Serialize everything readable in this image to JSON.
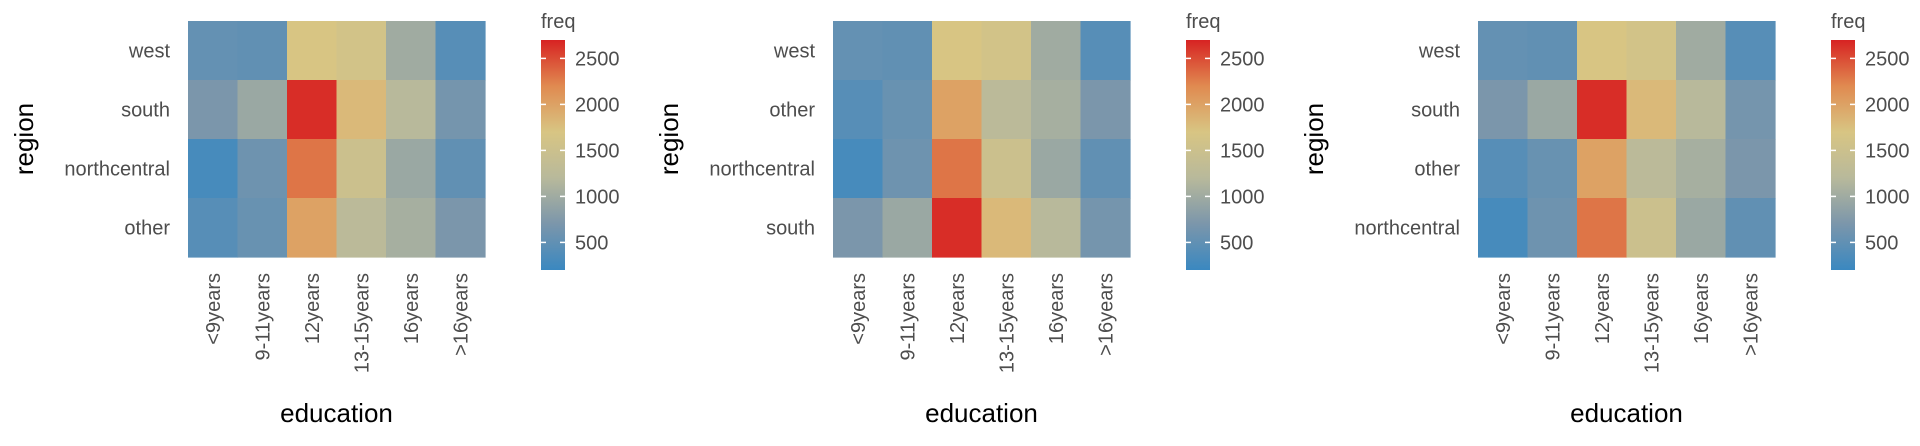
{
  "chart_data": [
    {
      "type": "heatmap",
      "xlabel": "education",
      "ylabel": "region",
      "x_categories": [
        "<9years",
        "9-11years",
        "12years",
        "13-15years",
        "16years",
        ">16years"
      ],
      "y_categories": [
        "west",
        "south",
        "northcentral",
        "other"
      ],
      "values": [
        [
          520,
          500,
          1700,
          1600,
          1000,
          420
        ],
        [
          700,
          950,
          2650,
          1800,
          1200,
          650
        ],
        [
          300,
          600,
          2300,
          1500,
          950,
          500
        ],
        [
          420,
          550,
          2000,
          1250,
          1050,
          700
        ]
      ],
      "legend": {
        "title": "freq",
        "ticks": [
          500,
          1000,
          1500,
          2000,
          2500
        ],
        "range": [
          200,
          2700
        ]
      }
    },
    {
      "type": "heatmap",
      "xlabel": "education",
      "ylabel": "region",
      "x_categories": [
        "<9years",
        "9-11years",
        "12years",
        "13-15years",
        "16years",
        ">16years"
      ],
      "y_categories": [
        "west",
        "other",
        "northcentral",
        "south"
      ],
      "values": [
        [
          520,
          500,
          1700,
          1600,
          1000,
          420
        ],
        [
          420,
          550,
          2000,
          1250,
          1050,
          700
        ],
        [
          300,
          600,
          2300,
          1500,
          950,
          500
        ],
        [
          700,
          950,
          2650,
          1800,
          1200,
          650
        ]
      ],
      "legend": {
        "title": "freq",
        "ticks": [
          500,
          1000,
          1500,
          2000,
          2500
        ],
        "range": [
          200,
          2700
        ]
      }
    },
    {
      "type": "heatmap",
      "xlabel": "education",
      "ylabel": "region",
      "x_categories": [
        "<9years",
        "9-11years",
        "12years",
        "13-15years",
        "16years",
        ">16years"
      ],
      "y_categories": [
        "west",
        "south",
        "other",
        "northcentral"
      ],
      "values": [
        [
          520,
          500,
          1700,
          1600,
          1000,
          420
        ],
        [
          700,
          950,
          2650,
          1800,
          1200,
          650
        ],
        [
          420,
          550,
          2000,
          1250,
          1050,
          700
        ],
        [
          300,
          600,
          2300,
          1500,
          950,
          500
        ]
      ],
      "legend": {
        "title": "freq",
        "ticks": [
          500,
          1000,
          1500,
          2000,
          2500
        ],
        "range": [
          200,
          2700
        ]
      }
    }
  ],
  "colors": {
    "scale": [
      "#3a88c0",
      "#7b96ab",
      "#b8b99b",
      "#d8c583",
      "#e08a50",
      "#d72322"
    ],
    "text": "#4d4d4d",
    "title": "#000000"
  }
}
